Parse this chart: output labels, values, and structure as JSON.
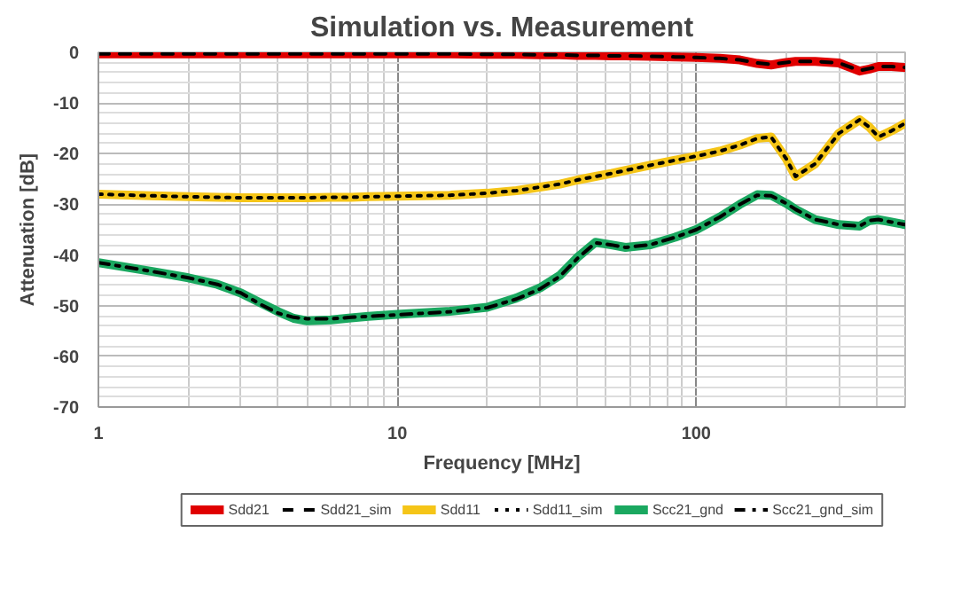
{
  "chart_data": {
    "type": "line",
    "title": "Simulation vs. Measurement",
    "xlabel": "Frequency [MHz]",
    "ylabel": "Attenuation [dB]",
    "x": [
      1,
      1.5,
      2,
      2.5,
      3,
      3.5,
      4,
      4.5,
      5,
      6,
      7,
      8,
      10,
      15,
      20,
      25,
      30,
      35,
      40,
      46,
      52,
      58,
      70,
      85,
      100,
      120,
      140,
      160,
      178,
      200,
      215,
      250,
      300,
      352,
      380,
      407,
      450,
      500
    ],
    "series": [
      {
        "name": "Sdd21",
        "color": "#e00000",
        "line_style": "solid",
        "values": [
          -0.3,
          -0.3,
          -0.3,
          -0.3,
          -0.3,
          -0.3,
          -0.3,
          -0.3,
          -0.3,
          -0.3,
          -0.3,
          -0.3,
          -0.3,
          -0.3,
          -0.4,
          -0.4,
          -0.5,
          -0.5,
          -0.6,
          -0.6,
          -0.7,
          -0.7,
          -0.8,
          -0.9,
          -1.0,
          -1.2,
          -1.5,
          -2.2,
          -2.5,
          -2.0,
          -1.8,
          -1.8,
          -2.1,
          -3.7,
          -3.3,
          -2.8,
          -2.8,
          -3.0
        ]
      },
      {
        "name": "Sdd21_sim",
        "color": "#000000",
        "line_style": "dashed",
        "values": [
          -0.3,
          -0.3,
          -0.3,
          -0.3,
          -0.3,
          -0.3,
          -0.3,
          -0.3,
          -0.3,
          -0.3,
          -0.3,
          -0.3,
          -0.3,
          -0.3,
          -0.4,
          -0.4,
          -0.5,
          -0.5,
          -0.6,
          -0.6,
          -0.7,
          -0.7,
          -0.8,
          -0.9,
          -1.0,
          -1.2,
          -1.5,
          -2.1,
          -2.4,
          -2.0,
          -1.8,
          -1.8,
          -2.1,
          -3.6,
          -3.2,
          -2.8,
          -2.8,
          -3.0
        ]
      },
      {
        "name": "Sdd11",
        "color": "#f5c518",
        "line_style": "solid",
        "values": [
          -28,
          -28.3,
          -28.5,
          -28.6,
          -28.7,
          -28.7,
          -28.7,
          -28.7,
          -28.7,
          -28.6,
          -28.6,
          -28.5,
          -28.4,
          -28.2,
          -27.8,
          -27.3,
          -26.6,
          -26,
          -25.2,
          -24.5,
          -23.9,
          -23.3,
          -22.3,
          -21.3,
          -20.5,
          -19.5,
          -18.3,
          -17,
          -16.7,
          -21,
          -24.5,
          -22,
          -16,
          -13.3,
          -14.8,
          -16.7,
          -15.5,
          -14
        ]
      },
      {
        "name": "Sdd11_sim",
        "color": "#000000",
        "line_style": "dotted",
        "values": [
          -28,
          -28.3,
          -28.5,
          -28.6,
          -28.7,
          -28.7,
          -28.7,
          -28.7,
          -28.7,
          -28.6,
          -28.6,
          -28.5,
          -28.4,
          -28.2,
          -27.8,
          -27.3,
          -26.6,
          -26,
          -25.2,
          -24.5,
          -23.9,
          -23.3,
          -22.3,
          -21.3,
          -20.5,
          -19.5,
          -18.3,
          -17,
          -16.7,
          -21,
          -24.5,
          -22,
          -16,
          -13.3,
          -14.8,
          -16.7,
          -15.5,
          -14
        ]
      },
      {
        "name": "Scc21_gnd",
        "color": "#1aa860",
        "line_style": "solid",
        "values": [
          -41.5,
          -43.2,
          -44.5,
          -45.8,
          -47.5,
          -49.5,
          -51.2,
          -52.5,
          -53,
          -52.8,
          -52.4,
          -52.1,
          -51.7,
          -51.1,
          -50.3,
          -48.5,
          -46.5,
          -44,
          -40.5,
          -37.5,
          -38,
          -38.5,
          -38,
          -36.5,
          -35,
          -32.5,
          -30,
          -28.1,
          -28.2,
          -29.8,
          -31,
          -33,
          -34,
          -34.3,
          -33.2,
          -33,
          -33.5,
          -34
        ]
      },
      {
        "name": "Scc21_gnd_sim",
        "color": "#000000",
        "line_style": "dashdot",
        "values": [
          -41.5,
          -43.2,
          -44.5,
          -45.8,
          -47.5,
          -49.8,
          -51.5,
          -52.3,
          -52.6,
          -52.6,
          -52.3,
          -52.1,
          -51.8,
          -51.2,
          -50.4,
          -48.7,
          -46.7,
          -44.2,
          -40.7,
          -37.6,
          -38,
          -38.5,
          -38,
          -36.5,
          -35,
          -32.5,
          -30,
          -28.2,
          -28.3,
          -29.8,
          -31,
          -33,
          -34,
          -34.3,
          -33.2,
          -33,
          -33.5,
          -34
        ]
      }
    ],
    "log": "x",
    "xlim": [
      1,
      500
    ],
    "xticks": [
      1,
      10,
      100
    ],
    "ylim": [
      -70,
      0
    ],
    "yticks": [
      -70,
      -60,
      -50,
      -40,
      -30,
      -20,
      -10,
      0
    ],
    "grid": true,
    "legend": "bottom"
  }
}
